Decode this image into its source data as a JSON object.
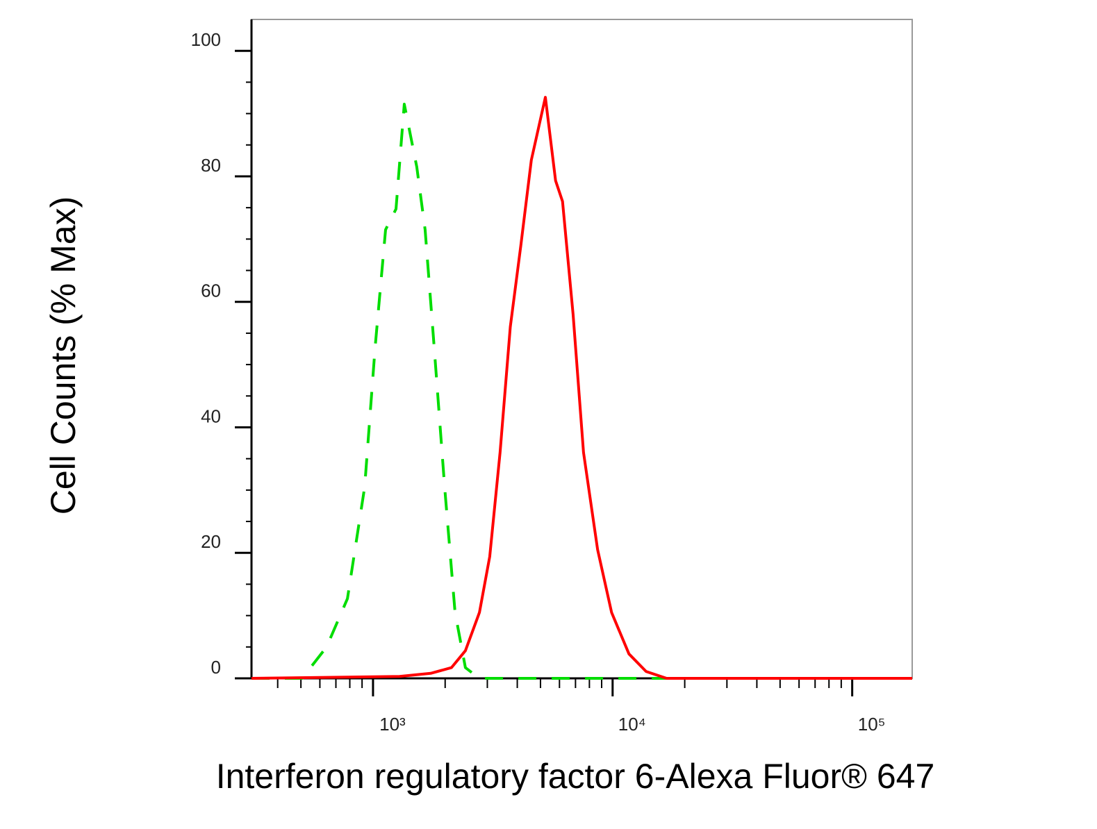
{
  "chart_data": {
    "type": "line",
    "x_label": "Interferon regulatory factor 6-Alexa Fluor® 647",
    "y_label": "Cell Counts (% Max)",
    "xscale": "log",
    "xlim": [
      311,
      178000
    ],
    "ylim": [
      0,
      105
    ],
    "xticks": [
      {
        "value": 1000,
        "label": "10³"
      },
      {
        "value": 10000,
        "label": "10⁴"
      },
      {
        "value": 100000,
        "label": "10⁵"
      }
    ],
    "x_minor_ticks": [
      400,
      500,
      600,
      700,
      800,
      900,
      2000,
      3000,
      4000,
      5000,
      6000,
      7000,
      8000,
      9000,
      20000,
      30000,
      40000,
      50000,
      60000,
      70000,
      80000,
      90000
    ],
    "yticks": [
      0,
      20,
      40,
      60,
      80,
      100
    ],
    "y_minor_ticks": [
      5,
      10,
      15,
      25,
      30,
      35,
      45,
      50,
      55,
      65,
      70,
      75,
      85,
      90,
      95
    ],
    "series": [
      {
        "color": "#00dd00",
        "line_style": "dashed",
        "x": [
          311,
          506,
          640,
          782,
          923,
          1020,
          1128,
          1247,
          1350,
          1523,
          1650,
          1800,
          1990,
          2200,
          2430,
          2775,
          178000
        ],
        "values": [
          0,
          0,
          5,
          12.7,
          30.5,
          52.7,
          71.5,
          74.8,
          91.5,
          81.5,
          71.5,
          52.7,
          30.5,
          10.5,
          1.7,
          0,
          0
        ]
      },
      {
        "color": "#ff0000",
        "line_style": "solid",
        "x": [
          311,
          1290,
          1740,
          2125,
          2430,
          2780,
          3070,
          3390,
          3740,
          4140,
          4580,
          5240,
          5780,
          6180,
          6840,
          7560,
          8660,
          9900,
          11700,
          13800,
          16800,
          178000
        ],
        "values": [
          0,
          0.3,
          0.8,
          1.7,
          4.4,
          10.5,
          19.4,
          36,
          56,
          69,
          82.6,
          92.6,
          79.3,
          76,
          58,
          36,
          20.5,
          10.5,
          3.9,
          1.1,
          0,
          0
        ]
      }
    ]
  }
}
